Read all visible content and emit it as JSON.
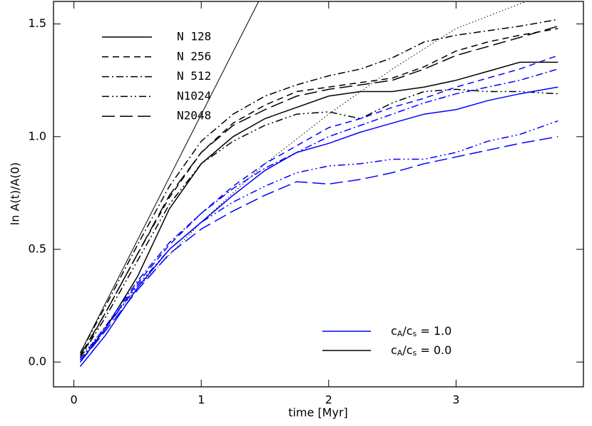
{
  "chart_data": {
    "type": "line",
    "xlabel": "time [Myr]",
    "ylabel": "ln A(t)/A(0)",
    "xlim": [
      -0.16,
      4.0
    ],
    "ylim": [
      -0.11,
      1.6
    ],
    "xticks": [
      0,
      1,
      2,
      3
    ],
    "yticks": [
      {
        "value": 0,
        "label": "0.0"
      },
      0.5,
      {
        "value": 1,
        "label": "1.0"
      },
      1.5
    ],
    "x": [
      0.05,
      0.25,
      0.5,
      0.75,
      1.0,
      1.25,
      1.5,
      1.75,
      2.0,
      2.25,
      2.5,
      2.75,
      3.0,
      3.25,
      3.5,
      3.8
    ],
    "styles": [
      {
        "name": "N 128",
        "dash": "solid"
      },
      {
        "name": "N 256",
        "dash": "dashed"
      },
      {
        "name": "N 512",
        "dash": "dashdot"
      },
      {
        "name": "N1024",
        "dash": "dashdotdot"
      },
      {
        "name": "N2048",
        "dash": "longdash"
      }
    ],
    "groups": [
      {
        "label_parts": [
          "c",
          "A",
          "/c",
          "s",
          " = 1.0"
        ],
        "color": "#0000ff"
      },
      {
        "label_parts": [
          "c",
          "A",
          "/c",
          "s",
          " = 0.0"
        ],
        "color": "#000000"
      }
    ],
    "series": [
      {
        "style": 0,
        "group": 1,
        "values": [
          0.0,
          0.15,
          0.38,
          0.68,
          0.88,
          1.0,
          1.08,
          1.13,
          1.18,
          1.2,
          1.2,
          1.22,
          1.25,
          1.29,
          1.33,
          1.33
        ]
      },
      {
        "style": 1,
        "group": 1,
        "values": [
          0.02,
          0.22,
          0.48,
          0.73,
          0.93,
          1.06,
          1.14,
          1.2,
          1.22,
          1.24,
          1.26,
          1.31,
          1.38,
          1.42,
          1.45,
          1.48
        ]
      },
      {
        "style": 2,
        "group": 1,
        "values": [
          0.04,
          0.25,
          0.52,
          0.78,
          0.98,
          1.1,
          1.18,
          1.23,
          1.27,
          1.3,
          1.35,
          1.42,
          1.45,
          1.47,
          1.49,
          1.52
        ]
      },
      {
        "style": 3,
        "group": 1,
        "values": [
          0.02,
          0.2,
          0.45,
          0.7,
          0.88,
          0.98,
          1.05,
          1.1,
          1.11,
          1.08,
          1.15,
          1.2,
          1.21,
          1.2,
          1.2,
          1.19
        ]
      },
      {
        "style": 4,
        "group": 1,
        "values": [
          0.03,
          0.22,
          0.48,
          0.74,
          0.93,
          1.05,
          1.12,
          1.18,
          1.21,
          1.23,
          1.25,
          1.3,
          1.36,
          1.4,
          1.44,
          1.49
        ]
      },
      {
        "style": 0,
        "group": 0,
        "values": [
          -0.02,
          0.12,
          0.33,
          0.5,
          0.62,
          0.74,
          0.85,
          0.93,
          0.97,
          1.02,
          1.06,
          1.1,
          1.12,
          1.16,
          1.19,
          1.22
        ]
      },
      {
        "style": 1,
        "group": 0,
        "values": [
          0.0,
          0.15,
          0.35,
          0.52,
          0.66,
          0.78,
          0.88,
          0.96,
          1.04,
          1.08,
          1.13,
          1.17,
          1.22,
          1.26,
          1.3,
          1.36
        ]
      },
      {
        "style": 2,
        "group": 0,
        "values": [
          0.01,
          0.16,
          0.36,
          0.53,
          0.66,
          0.77,
          0.86,
          0.93,
          1.0,
          1.05,
          1.1,
          1.15,
          1.19,
          1.22,
          1.25,
          1.3
        ]
      },
      {
        "style": 3,
        "group": 0,
        "values": [
          0.01,
          0.15,
          0.34,
          0.5,
          0.62,
          0.71,
          0.78,
          0.84,
          0.87,
          0.88,
          0.9,
          0.9,
          0.93,
          0.98,
          1.01,
          1.07
        ]
      },
      {
        "style": 4,
        "group": 0,
        "values": [
          0.0,
          0.14,
          0.32,
          0.48,
          0.59,
          0.67,
          0.74,
          0.8,
          0.79,
          0.81,
          0.84,
          0.88,
          0.91,
          0.94,
          0.97,
          1.0
        ]
      }
    ],
    "reference_lines": [
      {
        "dash": "solid",
        "x": [
          0.05,
          1.45
        ],
        "values": [
          0.04,
          1.6
        ]
      },
      {
        "dash": "dotted",
        "x": [
          0.05,
          0.5,
          1.0,
          1.5,
          2.0,
          2.5,
          3.0,
          3.55
        ],
        "values": [
          0.02,
          0.33,
          0.62,
          0.88,
          1.1,
          1.3,
          1.48,
          1.6
        ]
      }
    ]
  }
}
